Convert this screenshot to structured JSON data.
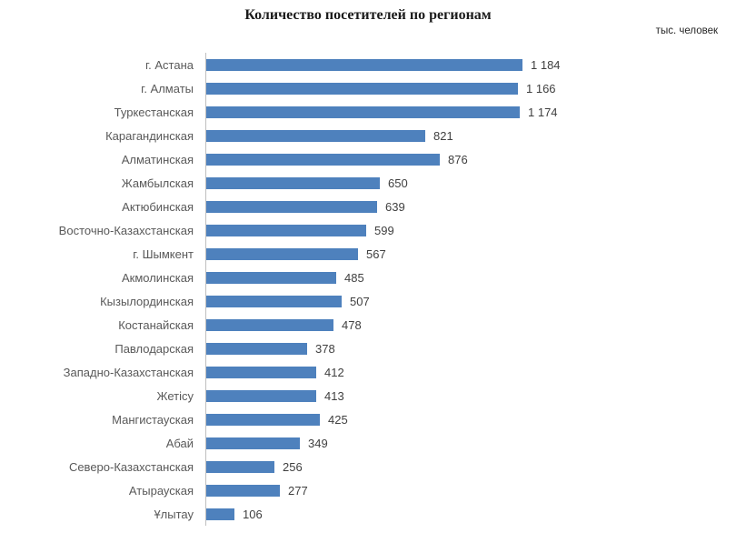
{
  "title": "Количество посетителей по регионам",
  "units_label": "тыс. человек",
  "colors": {
    "bar": "#4E81BD",
    "axis": "#BFBFBF",
    "category_label": "#595959",
    "value_label": "#404040",
    "title": "#1A1A1A"
  },
  "chart_data": {
    "type": "bar",
    "orientation": "horizontal",
    "title": "Количество посетителей по регионам",
    "unit": "тыс. человек",
    "xlabel": "",
    "ylabel": "",
    "grid": false,
    "legend": false,
    "data_labels": true,
    "xlim": [
      0,
      1200
    ],
    "categories": [
      "г. Астана",
      "г. Алматы",
      "Туркестанская",
      "Карагандинская",
      "Алматинская",
      "Жамбылская",
      "Актюбинская",
      "Восточно-Казахстанская",
      "г. Шымкент",
      "Акмолинская",
      "Кызылординская",
      "Костанайская",
      "Павлодарская",
      "Западно-Казахстанская",
      "Жетісу",
      "Мангистауская",
      "Абай",
      "Северо-Казахстанская",
      "Атырауская",
      "Ұлытау"
    ],
    "values": [
      1184,
      1166,
      1174,
      821,
      876,
      650,
      639,
      599,
      567,
      485,
      507,
      478,
      378,
      412,
      413,
      425,
      349,
      256,
      277,
      106
    ],
    "value_labels": [
      "1 184",
      "1 166",
      "1 174",
      "821",
      "876",
      "650",
      "639",
      "599",
      "567",
      "485",
      "507",
      "478",
      "378",
      "412",
      "413",
      "425",
      "349",
      "256",
      "277",
      "106"
    ]
  }
}
